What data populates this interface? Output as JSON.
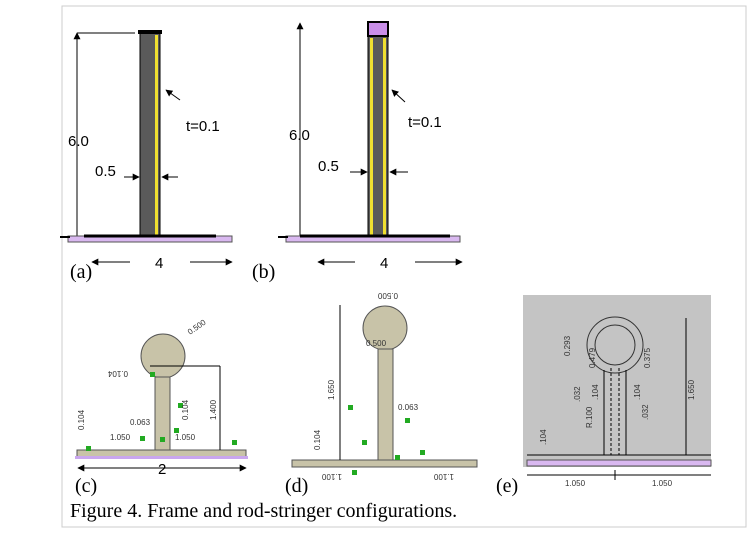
{
  "figure": {
    "caption": "Figure 4. Frame and rod-stringer configurations.",
    "panels": [
      {
        "label": "(a)",
        "height": "6.0",
        "thickness": "t=0.1",
        "width": "0.5",
        "base": "4"
      },
      {
        "label": "(b)",
        "height": "6.0",
        "thickness": "t=0.1",
        "width": "0.5",
        "base": "4"
      },
      {
        "label": "(c)",
        "dims": [
          "0.500",
          "0.104",
          "0.104",
          "1.400",
          "0.063",
          "0.104",
          "1.050",
          "1.050",
          "2"
        ]
      },
      {
        "label": "(d)",
        "dims": [
          "0.500",
          "1.650",
          "0.104",
          "0.063",
          "1.100",
          "1.100",
          "0.500"
        ]
      },
      {
        "label": "(e)",
        "dims": [
          "0.375",
          "0.479",
          "0.293",
          "1.650",
          ".104",
          ".032",
          "R.100",
          ".104",
          ".032",
          ".104",
          "1.050",
          "1.050"
        ]
      }
    ]
  }
}
